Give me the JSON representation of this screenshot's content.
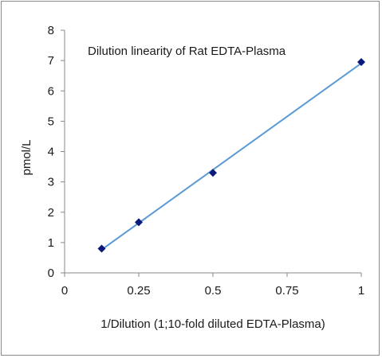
{
  "chart_data": {
    "type": "scatter",
    "title": "Dilution linearity of Rat EDTA-Plasma",
    "xlabel": "1/Dilution (1;10-fold diluted EDTA-Plasma)",
    "ylabel": "pmol/L",
    "xlim": [
      0,
      1
    ],
    "ylim": [
      0,
      8
    ],
    "x_ticks": [
      "0",
      "0.25",
      "0.5",
      "0.75",
      "1"
    ],
    "y_ticks": [
      "0",
      "1",
      "2",
      "3",
      "4",
      "5",
      "6",
      "7",
      "8"
    ],
    "series": [
      {
        "x": [
          0.125,
          0.25,
          0.5,
          1.0
        ],
        "y": [
          0.8,
          1.67,
          3.3,
          6.95
        ],
        "marker": "diamond",
        "marker_color": "#0a1a7a",
        "line": "linear-fit",
        "line_color": "#5b9bd5"
      }
    ],
    "grid": false,
    "legend": "none"
  }
}
